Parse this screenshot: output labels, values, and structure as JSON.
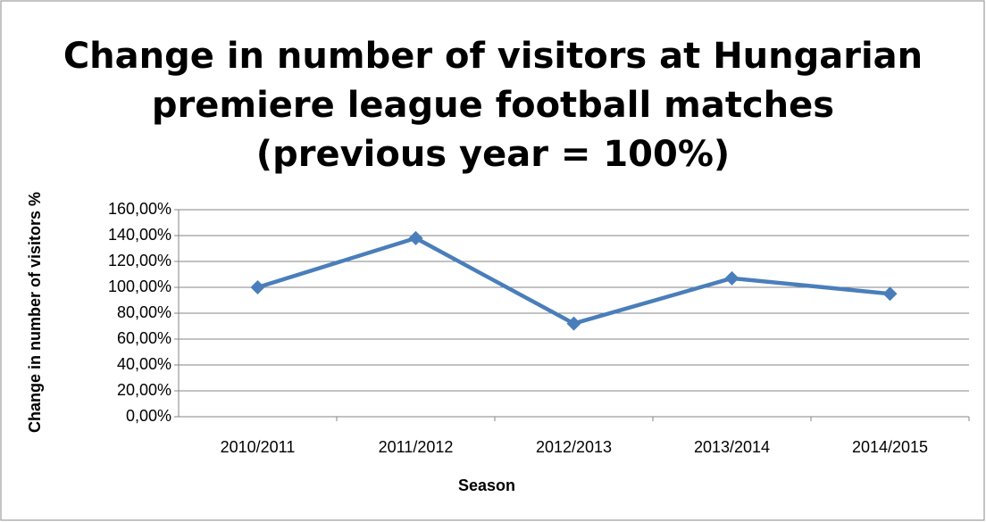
{
  "chart_data": {
    "type": "line",
    "title": "Change in number of visitors at Hungarian\npremiere league football matches\n(previous year = 100%)",
    "x_label": "Season",
    "y_label": "Change in number of visitors %",
    "categories": [
      "2010/2011",
      "2011/2012",
      "2012/2013",
      "2013/2014",
      "2014/2015"
    ],
    "series": [
      {
        "name": "Change in number of visitors %",
        "color": "#4a7ebb",
        "values": [
          100,
          138,
          72,
          107,
          95
        ]
      }
    ],
    "ylim": [
      0,
      160
    ],
    "yticks": [
      {
        "value": 0,
        "label": "0,00%"
      },
      {
        "value": 20,
        "label": "20,00%"
      },
      {
        "value": 40,
        "label": "40,00%"
      },
      {
        "value": 60,
        "label": "60,00%"
      },
      {
        "value": 80,
        "label": "80,00%"
      },
      {
        "value": 100,
        "label": "100,00%"
      },
      {
        "value": 120,
        "label": "120,00%"
      },
      {
        "value": 140,
        "label": "140,00%"
      },
      {
        "value": 160,
        "label": "160,00%"
      }
    ],
    "grid": true,
    "legend": false
  }
}
